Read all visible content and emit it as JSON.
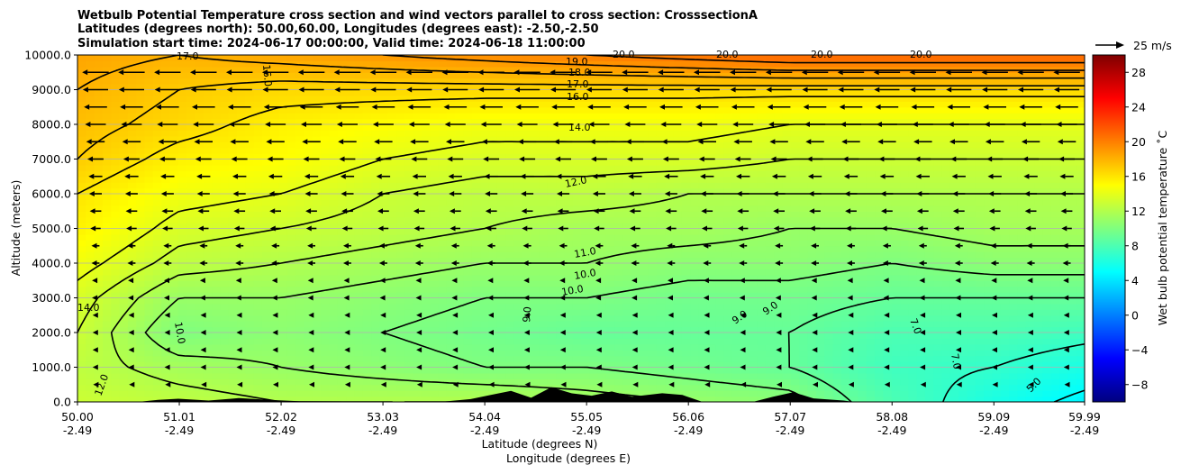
{
  "chart_data": {
    "type": "heatmap",
    "title_lines": [
      "Wetbulb Potential Temperature cross section and wind vectors parallel to cross section: CrosssectionA",
      "Latitudes (degrees north): 50.00,60.00, Longitudes (degrees east): -2.50,-2.50",
      "Simulation start time: 2024-06-17 00:00:00, Valid time: 2024-06-18 11:00:00"
    ],
    "xlabel_lat": "Latitude (degrees N)",
    "xlabel_lon": "Longitude (degrees E)",
    "ylabel": "Altitude (meters)",
    "xlim": [
      50.0,
      59.99
    ],
    "ylim": [
      0,
      10000
    ],
    "x_ticks": [
      {
        "lat": "50.00",
        "lon": "-2.49",
        "value": 50.0
      },
      {
        "lat": "51.01",
        "lon": "-2.49",
        "value": 51.01
      },
      {
        "lat": "52.02",
        "lon": "-2.49",
        "value": 52.02
      },
      {
        "lat": "53.03",
        "lon": "-2.49",
        "value": 53.03
      },
      {
        "lat": "54.04",
        "lon": "-2.49",
        "value": 54.04
      },
      {
        "lat": "55.05",
        "lon": "-2.49",
        "value": 55.05
      },
      {
        "lat": "56.06",
        "lon": "-2.49",
        "value": 56.06
      },
      {
        "lat": "57.07",
        "lon": "-2.49",
        "value": 57.07
      },
      {
        "lat": "58.08",
        "lon": "-2.49",
        "value": 58.08
      },
      {
        "lat": "59.09",
        "lon": "-2.49",
        "value": 59.09
      },
      {
        "lat": "59.99",
        "lon": "-2.49",
        "value": 59.99
      }
    ],
    "y_ticks": [
      "0.0",
      "1000.0",
      "2000.0",
      "3000.0",
      "4000.0",
      "5000.0",
      "6000.0",
      "7000.0",
      "8000.0",
      "9000.0",
      "10000.0"
    ],
    "grid_y": true,
    "colorbar": {
      "label": "Wet bulb potential temperature ˚C",
      "range": [
        -10,
        30
      ],
      "ticks": [
        -8,
        -4,
        0,
        4,
        8,
        12,
        16,
        20,
        24,
        28
      ],
      "colormap": [
        "#00007f",
        "#0000ff",
        "#007fff",
        "#00ffff",
        "#7fff7f",
        "#ffff00",
        "#ff7f00",
        "#ff0000",
        "#7f0000"
      ]
    },
    "quiver_key": {
      "label": "25 m/s",
      "speed": 25
    },
    "wind_direction": "toward lower latitude",
    "wind_speed_profile": [
      {
        "alt": 500,
        "speed": 4
      },
      {
        "alt": 1000,
        "speed": 5
      },
      {
        "alt": 1500,
        "speed": 5
      },
      {
        "alt": 2000,
        "speed": 5
      },
      {
        "alt": 2500,
        "speed": 5
      },
      {
        "alt": 3000,
        "speed": 6
      },
      {
        "alt": 3500,
        "speed": 6
      },
      {
        "alt": 4000,
        "speed": 7
      },
      {
        "alt": 4500,
        "speed": 7
      },
      {
        "alt": 5000,
        "speed": 9
      },
      {
        "alt": 5500,
        "speed": 10
      },
      {
        "alt": 6000,
        "speed": 11
      },
      {
        "alt": 6500,
        "speed": 12
      },
      {
        "alt": 7000,
        "speed": 14
      },
      {
        "alt": 7500,
        "speed": 16
      },
      {
        "alt": 8000,
        "speed": 18
      },
      {
        "alt": 8500,
        "speed": 20
      },
      {
        "alt": 9000,
        "speed": 22
      },
      {
        "alt": 9500,
        "speed": 23
      }
    ],
    "temperature_profiles": [
      {
        "lat": 50.0,
        "values": [
          [
            0,
            13
          ],
          [
            1000,
            12.5
          ],
          [
            2000,
            13
          ],
          [
            3000,
            13.5
          ],
          [
            4000,
            14.5
          ],
          [
            5000,
            15.5
          ],
          [
            6000,
            16
          ],
          [
            7000,
            17
          ],
          [
            8000,
            17.5
          ],
          [
            9000,
            18
          ],
          [
            10000,
            18.5
          ]
        ]
      },
      {
        "lat": 51.01,
        "values": [
          [
            0,
            12.5
          ],
          [
            1000,
            11.5
          ],
          [
            2000,
            10
          ],
          [
            3000,
            11
          ],
          [
            4000,
            12.5
          ],
          [
            5000,
            13.5
          ],
          [
            6000,
            14.5
          ],
          [
            7000,
            15.5
          ],
          [
            8000,
            16.5
          ],
          [
            9000,
            17
          ],
          [
            10000,
            18
          ]
        ]
      },
      {
        "lat": 52.02,
        "values": [
          [
            0,
            12
          ],
          [
            1000,
            11
          ],
          [
            2000,
            10.5
          ],
          [
            3000,
            11
          ],
          [
            4000,
            12
          ],
          [
            5000,
            13
          ],
          [
            6000,
            14
          ],
          [
            7000,
            15
          ],
          [
            8000,
            15.5
          ],
          [
            9000,
            16.5
          ],
          [
            10000,
            18.5
          ]
        ]
      },
      {
        "lat": 53.03,
        "values": [
          [
            0,
            12
          ],
          [
            1000,
            10.5
          ],
          [
            2000,
            10
          ],
          [
            3000,
            10.5
          ],
          [
            4000,
            11.5
          ],
          [
            5000,
            12.5
          ],
          [
            6000,
            13
          ],
          [
            7000,
            14
          ],
          [
            8000,
            15
          ],
          [
            9000,
            16.5
          ],
          [
            10000,
            19
          ]
        ]
      },
      {
        "lat": 54.04,
        "values": [
          [
            0,
            12
          ],
          [
            1000,
            10
          ],
          [
            2000,
            9.5
          ],
          [
            3000,
            10
          ],
          [
            4000,
            11
          ],
          [
            5000,
            12
          ],
          [
            6000,
            12.5
          ],
          [
            7000,
            13.5
          ],
          [
            8000,
            14.5
          ],
          [
            9000,
            16.5
          ],
          [
            10000,
            19.5
          ]
        ]
      },
      {
        "lat": 55.05,
        "values": [
          [
            0,
            11.5
          ],
          [
            1000,
            10
          ],
          [
            2000,
            9
          ],
          [
            3000,
            10
          ],
          [
            4000,
            11
          ],
          [
            5000,
            11.5
          ],
          [
            6000,
            12.5
          ],
          [
            7000,
            13.5
          ],
          [
            8000,
            14.5
          ],
          [
            9000,
            16.5
          ],
          [
            10000,
            20
          ]
        ]
      },
      {
        "lat": 56.06,
        "values": [
          [
            0,
            11
          ],
          [
            1000,
            9.5
          ],
          [
            2000,
            9
          ],
          [
            3000,
            9.5
          ],
          [
            4000,
            10.5
          ],
          [
            5000,
            11.5
          ],
          [
            6000,
            12
          ],
          [
            7000,
            13.5
          ],
          [
            8000,
            14.5
          ],
          [
            9000,
            16.5
          ],
          [
            10000,
            20.5
          ]
        ]
      },
      {
        "lat": 57.07,
        "values": [
          [
            0,
            10.5
          ],
          [
            1000,
            9
          ],
          [
            2000,
            9
          ],
          [
            3000,
            9.5
          ],
          [
            4000,
            10.5
          ],
          [
            5000,
            11
          ],
          [
            6000,
            12
          ],
          [
            7000,
            13
          ],
          [
            8000,
            14
          ],
          [
            9000,
            16.5
          ],
          [
            10000,
            21
          ]
        ]
      },
      {
        "lat": 58.08,
        "values": [
          [
            0,
            8
          ],
          [
            1000,
            7.5
          ],
          [
            2000,
            8
          ],
          [
            3000,
            9
          ],
          [
            4000,
            10
          ],
          [
            5000,
            11
          ],
          [
            6000,
            12
          ],
          [
            7000,
            13
          ],
          [
            8000,
            14
          ],
          [
            9000,
            16.5
          ],
          [
            10000,
            21
          ]
        ]
      },
      {
        "lat": 59.09,
        "values": [
          [
            0,
            6
          ],
          [
            1000,
            7
          ],
          [
            2000,
            8
          ],
          [
            3000,
            9
          ],
          [
            4000,
            10.5
          ],
          [
            5000,
            11.5
          ],
          [
            6000,
            12
          ],
          [
            7000,
            13
          ],
          [
            8000,
            14
          ],
          [
            9000,
            16.5
          ],
          [
            10000,
            21
          ]
        ]
      },
      {
        "lat": 59.99,
        "values": [
          [
            0,
            4.5
          ],
          [
            1000,
            6
          ],
          [
            2000,
            7.5
          ],
          [
            3000,
            9
          ],
          [
            4000,
            10.5
          ],
          [
            5000,
            11.5
          ],
          [
            6000,
            12
          ],
          [
            7000,
            13
          ],
          [
            8000,
            14
          ],
          [
            9000,
            16.5
          ],
          [
            10000,
            21
          ]
        ]
      }
    ],
    "contour_levels": [
      5,
      7,
      9,
      10,
      11,
      12,
      13,
      14,
      16,
      17,
      18,
      19,
      20
    ],
    "contour_labels": [
      "19.0",
      "18.0",
      "17.0",
      "16.0",
      "14.0",
      "12.0",
      "11.0",
      "10.0",
      "10.0",
      "9.0",
      "9.0",
      "9.0",
      "7.0",
      "7.0",
      "5.0",
      "10.0",
      "20.0",
      "20.0",
      "20.0",
      "20.0",
      "17.0",
      "16.0",
      "14.0",
      "12.0"
    ],
    "terrain": [
      {
        "lat": 50.0,
        "alt": 0
      },
      {
        "lat": 50.6,
        "alt": 0
      },
      {
        "lat": 50.8,
        "alt": 60
      },
      {
        "lat": 51.0,
        "alt": 90
      },
      {
        "lat": 51.3,
        "alt": 40
      },
      {
        "lat": 51.6,
        "alt": 110
      },
      {
        "lat": 51.9,
        "alt": 60
      },
      {
        "lat": 52.2,
        "alt": 20
      },
      {
        "lat": 53.6,
        "alt": 0
      },
      {
        "lat": 53.9,
        "alt": 80
      },
      {
        "lat": 54.1,
        "alt": 200
      },
      {
        "lat": 54.3,
        "alt": 320
      },
      {
        "lat": 54.5,
        "alt": 120
      },
      {
        "lat": 54.7,
        "alt": 420
      },
      {
        "lat": 54.9,
        "alt": 250
      },
      {
        "lat": 55.1,
        "alt": 180
      },
      {
        "lat": 55.3,
        "alt": 300
      },
      {
        "lat": 55.5,
        "alt": 150
      },
      {
        "lat": 55.8,
        "alt": 250
      },
      {
        "lat": 56.0,
        "alt": 200
      },
      {
        "lat": 56.2,
        "alt": 0
      },
      {
        "lat": 56.7,
        "alt": 0
      },
      {
        "lat": 56.9,
        "alt": 150
      },
      {
        "lat": 57.1,
        "alt": 280
      },
      {
        "lat": 57.3,
        "alt": 100
      },
      {
        "lat": 57.6,
        "alt": 40
      },
      {
        "lat": 57.7,
        "alt": 0
      },
      {
        "lat": 59.99,
        "alt": 0
      }
    ]
  }
}
